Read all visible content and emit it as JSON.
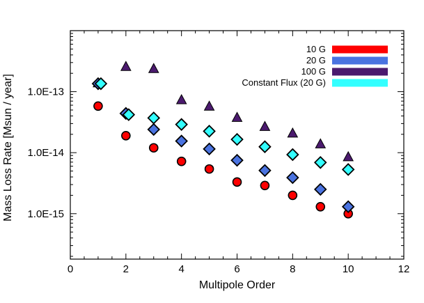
{
  "chart_data": {
    "type": "scatter",
    "title": "",
    "xlabel": "Multipole Order",
    "ylabel": "Mass Loss Rate [Msun / year]",
    "xlim": [
      0,
      12
    ],
    "ylim": [
      1.8e-16,
      1e-12
    ],
    "yscale": "log",
    "xticks": [
      0,
      2,
      4,
      6,
      8,
      10,
      12
    ],
    "xtick_labels": [
      "0",
      "2",
      "4",
      "6",
      "8",
      "10",
      "12"
    ],
    "yticks": [
      1e-15,
      1e-14,
      1e-13
    ],
    "ytick_labels": [
      "1.0E-15",
      "1.0E-14",
      "1.0E-13"
    ],
    "grid": false,
    "legend_position": "top-right",
    "series": [
      {
        "name": "10 G",
        "color": "#ff0000",
        "marker": "circle",
        "x": [
          1,
          2,
          3,
          4,
          5,
          6,
          7,
          8,
          9,
          10
        ],
        "y": [
          5.8e-14,
          1.9e-14,
          1.2e-14,
          7.2e-15,
          5.4e-15,
          3.3e-15,
          2.9e-15,
          2e-15,
          1.3e-15,
          1e-15
        ]
      },
      {
        "name": "20 G",
        "color": "#4a73e0",
        "marker": "diamond",
        "x": [
          1,
          2,
          3,
          4,
          5,
          6,
          7,
          8,
          9,
          10
        ],
        "y": [
          1.35e-13,
          4.4e-14,
          2.4e-14,
          1.55e-14,
          1.15e-14,
          7.5e-15,
          5.1e-15,
          3.9e-15,
          2.5e-15,
          1.3e-15
        ]
      },
      {
        "name": "100 G",
        "color": "#4b1a6e",
        "marker": "triangle",
        "x": [
          1,
          2,
          3,
          4,
          5,
          6,
          7,
          8,
          9,
          10
        ],
        "y": [
          1.4e-13,
          2.6e-13,
          2.4e-13,
          7.4e-14,
          5.8e-14,
          3.8e-14,
          2.7e-14,
          2.1e-14,
          1.4e-14,
          8.6e-15
        ]
      },
      {
        "name": "Constant Flux (20 G)",
        "color": "#33ffff",
        "marker": "diamond",
        "x": [
          1.1,
          2.1,
          3,
          4,
          5,
          6,
          7,
          8,
          9,
          10
        ],
        "y": [
          1.35e-13,
          4.2e-14,
          3.7e-14,
          2.9e-14,
          2.25e-14,
          1.65e-14,
          1.25e-14,
          9.3e-15,
          6.9e-15,
          5.3e-15
        ]
      }
    ]
  }
}
